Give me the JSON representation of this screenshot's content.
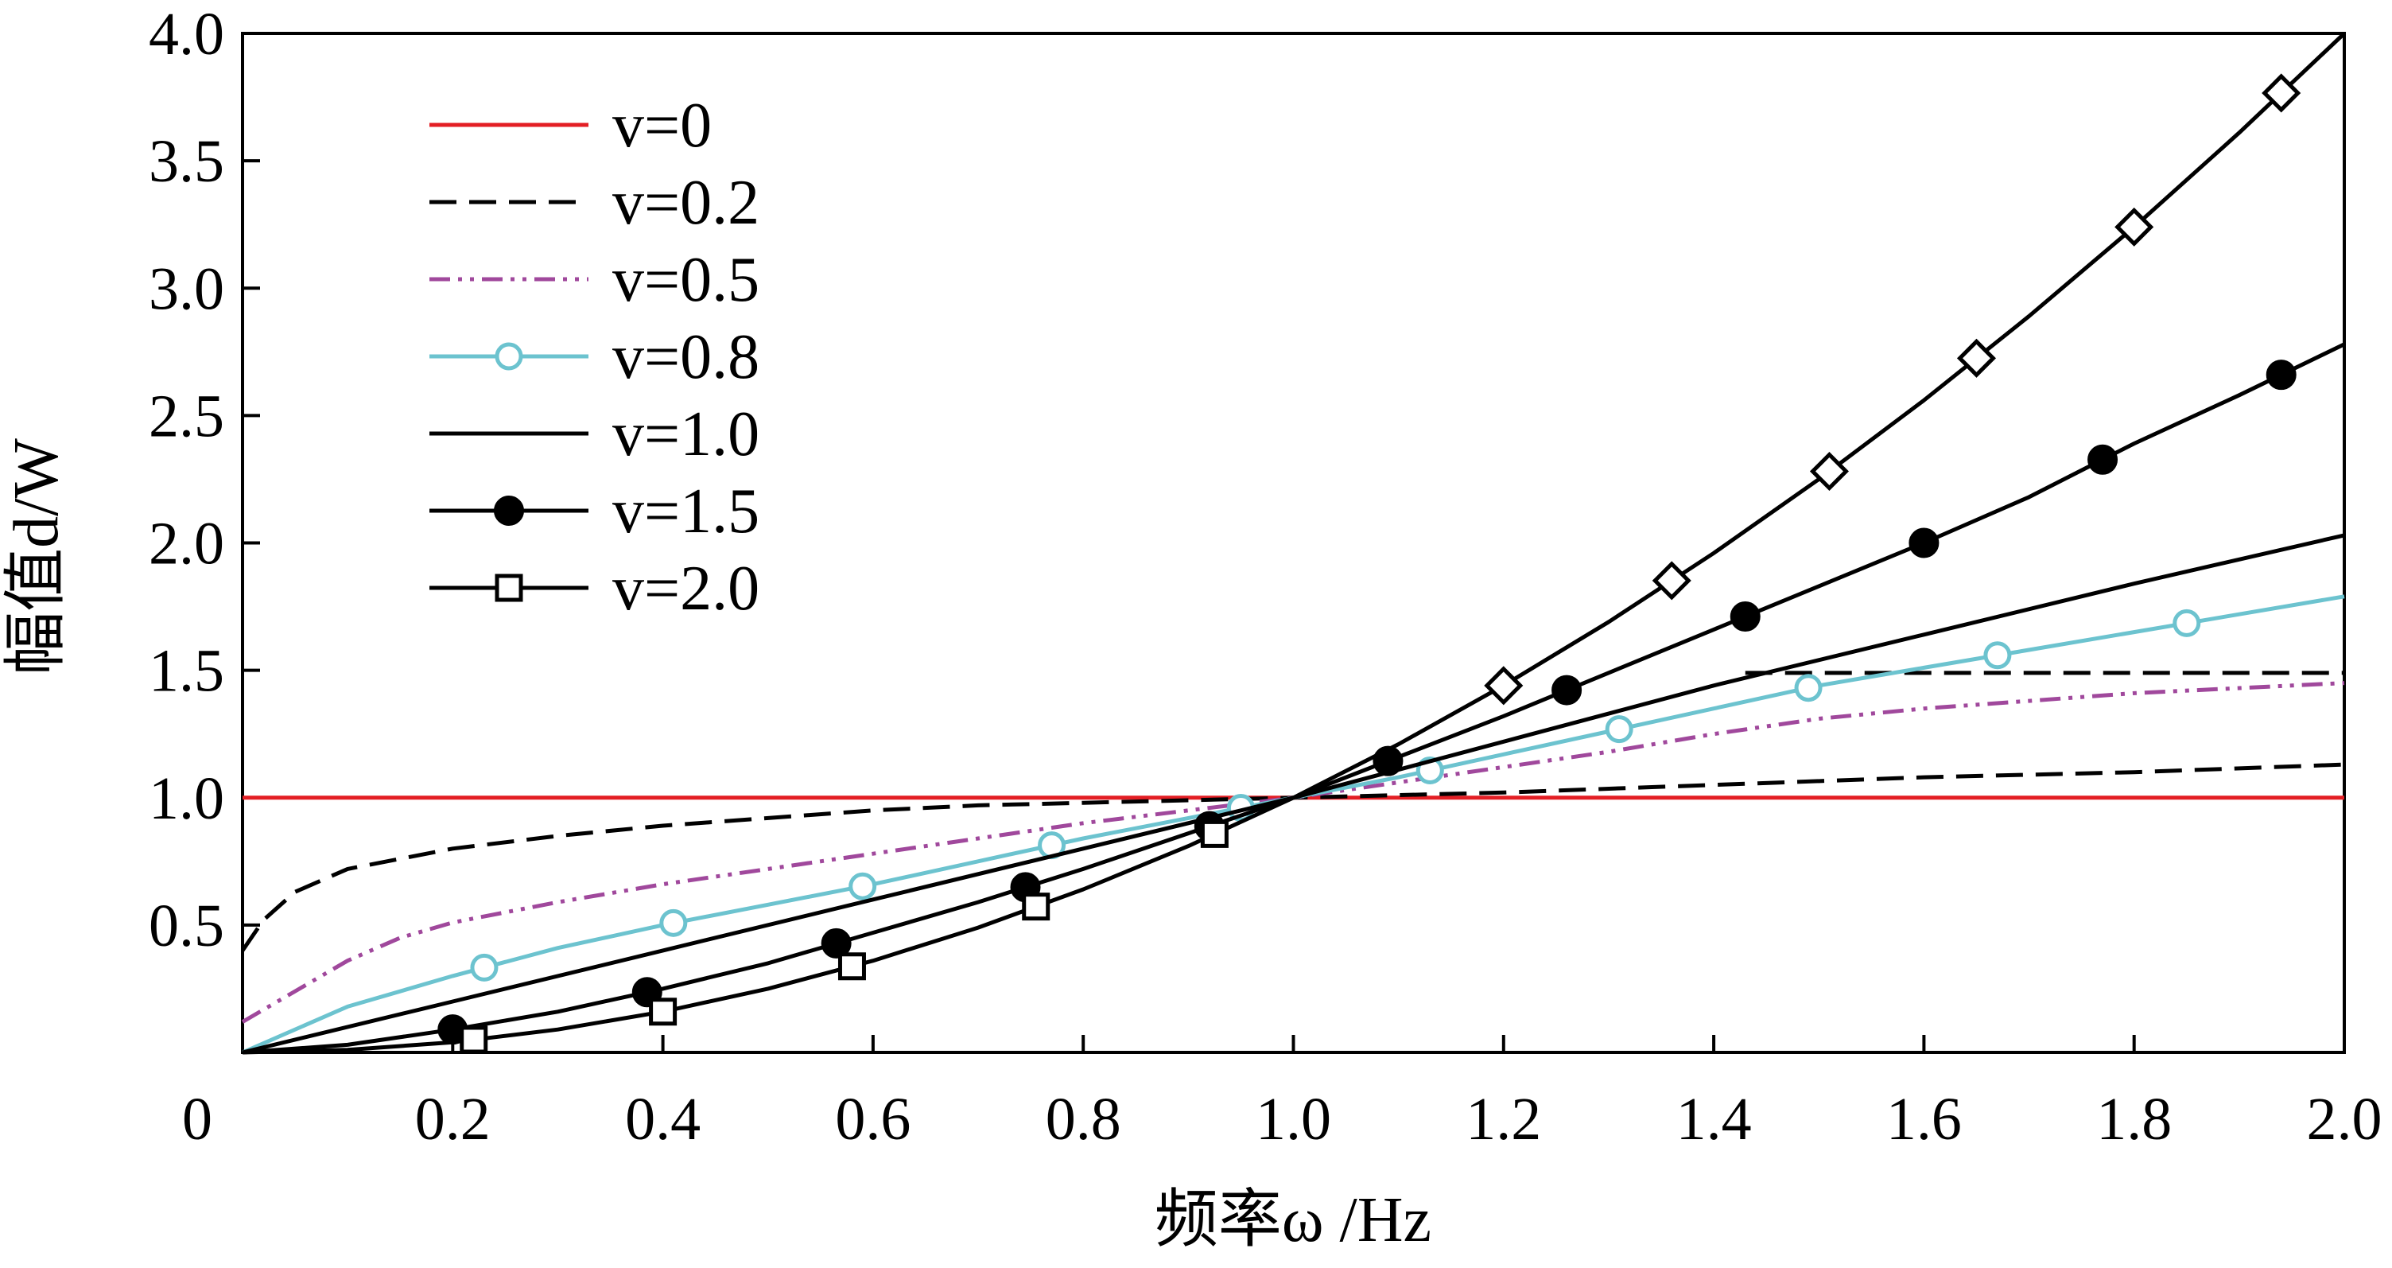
{
  "chart_data": {
    "type": "line",
    "xlabel": "频率ω /Hz",
    "ylabel": "幅值d/W",
    "xlim": [
      0,
      2.0
    ],
    "ylim": [
      0,
      4.0
    ],
    "x_ticks": [
      "0",
      "0.2",
      "0.4",
      "0.6",
      "0.8",
      "1.0",
      "1.2",
      "1.4",
      "1.6",
      "1.8",
      "2.0"
    ],
    "y_ticks": [
      "0.5",
      "1.0",
      "1.5",
      "2.0",
      "2.5",
      "3.0",
      "3.5",
      "4.0"
    ],
    "legend_position": "top-left",
    "grid": false,
    "series": [
      {
        "name": "v=0",
        "color": "#e31e24",
        "dash": "solid",
        "marker": "none",
        "points": [
          [
            0,
            1.0
          ],
          [
            0.5,
            1.0
          ],
          [
            1.0,
            1.0
          ],
          [
            1.5,
            1.0
          ],
          [
            2.0,
            1.0
          ]
        ]
      },
      {
        "name": "v=0.2",
        "color": "#000000",
        "dash": "longdash",
        "marker": "none",
        "points": [
          [
            0.0,
            0.4
          ],
          [
            0.02,
            0.52
          ],
          [
            0.05,
            0.63
          ],
          [
            0.1,
            0.72
          ],
          [
            0.2,
            0.8
          ],
          [
            0.3,
            0.85
          ],
          [
            0.4,
            0.89
          ],
          [
            0.5,
            0.92
          ],
          [
            0.6,
            0.95
          ],
          [
            0.7,
            0.97
          ],
          [
            0.8,
            0.98
          ],
          [
            0.9,
            0.99
          ],
          [
            1.0,
            1.0
          ],
          [
            1.2,
            1.02
          ],
          [
            1.4,
            1.05
          ],
          [
            1.6,
            1.08
          ],
          [
            1.8,
            1.1
          ],
          [
            2.0,
            1.13
          ]
        ],
        "extra_segment": [
          [
            1.43,
            1.49
          ],
          [
            2.0,
            1.49
          ]
        ]
      },
      {
        "name": "v=0.5",
        "color": "#a0489c",
        "dash": "dashdotdot",
        "marker": "none",
        "points": [
          [
            0.0,
            0.12
          ],
          [
            0.05,
            0.24
          ],
          [
            0.1,
            0.36
          ],
          [
            0.15,
            0.45
          ],
          [
            0.2,
            0.51
          ],
          [
            0.3,
            0.59
          ],
          [
            0.4,
            0.66
          ],
          [
            0.5,
            0.72
          ],
          [
            0.6,
            0.78
          ],
          [
            0.7,
            0.84
          ],
          [
            0.8,
            0.9
          ],
          [
            0.9,
            0.95
          ],
          [
            1.0,
            1.0
          ],
          [
            1.1,
            1.06
          ],
          [
            1.2,
            1.12
          ],
          [
            1.3,
            1.18
          ],
          [
            1.4,
            1.25
          ],
          [
            1.5,
            1.31
          ],
          [
            1.6,
            1.35
          ],
          [
            1.7,
            1.38
          ],
          [
            1.8,
            1.41
          ],
          [
            1.9,
            1.43
          ],
          [
            2.0,
            1.45
          ]
        ]
      },
      {
        "name": "v=0.8",
        "color": "#6cc3cf",
        "dash": "solid",
        "marker": "circle-open",
        "points": [
          [
            0.0,
            0.0
          ],
          [
            0.1,
            0.18
          ],
          [
            0.2,
            0.3
          ],
          [
            0.3,
            0.41
          ],
          [
            0.4,
            0.5
          ],
          [
            0.5,
            0.58
          ],
          [
            0.6,
            0.66
          ],
          [
            0.7,
            0.75
          ],
          [
            0.8,
            0.84
          ],
          [
            0.9,
            0.92
          ],
          [
            1.0,
            1.0
          ],
          [
            1.1,
            1.08
          ],
          [
            1.2,
            1.17
          ],
          [
            1.3,
            1.26
          ],
          [
            1.4,
            1.35
          ],
          [
            1.5,
            1.44
          ],
          [
            1.6,
            1.51
          ],
          [
            1.7,
            1.58
          ],
          [
            1.8,
            1.65
          ],
          [
            1.9,
            1.72
          ],
          [
            2.0,
            1.79
          ]
        ],
        "markers_x": [
          0.23,
          0.41,
          0.59,
          0.77,
          0.95,
          1.13,
          1.31,
          1.49,
          1.67,
          1.85
        ]
      },
      {
        "name": "v=1.0",
        "color": "#000000",
        "dash": "solid",
        "marker": "none",
        "points": [
          [
            0.0,
            0.0
          ],
          [
            0.2,
            0.2
          ],
          [
            0.4,
            0.4
          ],
          [
            0.6,
            0.6
          ],
          [
            0.8,
            0.8
          ],
          [
            1.0,
            1.0
          ],
          [
            1.2,
            1.22
          ],
          [
            1.4,
            1.44
          ],
          [
            1.6,
            1.64
          ],
          [
            1.8,
            1.84
          ],
          [
            2.0,
            2.03
          ]
        ]
      },
      {
        "name": "v=1.5",
        "color": "#000000",
        "dash": "solid",
        "marker": "circle-filled",
        "points": [
          [
            0.0,
            0.0
          ],
          [
            0.1,
            0.03
          ],
          [
            0.2,
            0.09
          ],
          [
            0.3,
            0.16
          ],
          [
            0.4,
            0.25
          ],
          [
            0.5,
            0.35
          ],
          [
            0.6,
            0.47
          ],
          [
            0.7,
            0.59
          ],
          [
            0.8,
            0.72
          ],
          [
            0.9,
            0.86
          ],
          [
            1.0,
            1.0
          ],
          [
            1.1,
            1.16
          ],
          [
            1.2,
            1.32
          ],
          [
            1.3,
            1.49
          ],
          [
            1.4,
            1.66
          ],
          [
            1.5,
            1.83
          ],
          [
            1.6,
            2.0
          ],
          [
            1.7,
            2.18
          ],
          [
            1.8,
            2.39
          ],
          [
            1.9,
            2.58
          ],
          [
            2.0,
            2.78
          ]
        ],
        "markers_x": [
          0.2,
          0.385,
          0.565,
          0.745,
          0.92,
          1.09,
          1.26,
          1.43,
          1.6,
          1.77,
          1.94
        ]
      },
      {
        "name": "v=2.0",
        "color": "#000000",
        "dash": "solid",
        "marker": "square-open",
        "marker_alt": "diamond-open",
        "points": [
          [
            0.0,
            0.0
          ],
          [
            0.1,
            0.01
          ],
          [
            0.2,
            0.04
          ],
          [
            0.3,
            0.09
          ],
          [
            0.4,
            0.16
          ],
          [
            0.5,
            0.25
          ],
          [
            0.6,
            0.36
          ],
          [
            0.7,
            0.49
          ],
          [
            0.8,
            0.64
          ],
          [
            0.9,
            0.81
          ],
          [
            1.0,
            1.0
          ],
          [
            1.1,
            1.21
          ],
          [
            1.2,
            1.44
          ],
          [
            1.3,
            1.69
          ],
          [
            1.4,
            1.96
          ],
          [
            1.5,
            2.25
          ],
          [
            1.6,
            2.56
          ],
          [
            1.7,
            2.89
          ],
          [
            1.8,
            3.24
          ],
          [
            1.9,
            3.61
          ],
          [
            2.0,
            4.0
          ]
        ],
        "markers_x": [
          0.22,
          0.4,
          0.58,
          0.755,
          0.925
        ],
        "markers_alt_x": [
          1.2,
          1.36,
          1.51,
          1.65,
          1.8,
          1.94
        ]
      }
    ]
  }
}
